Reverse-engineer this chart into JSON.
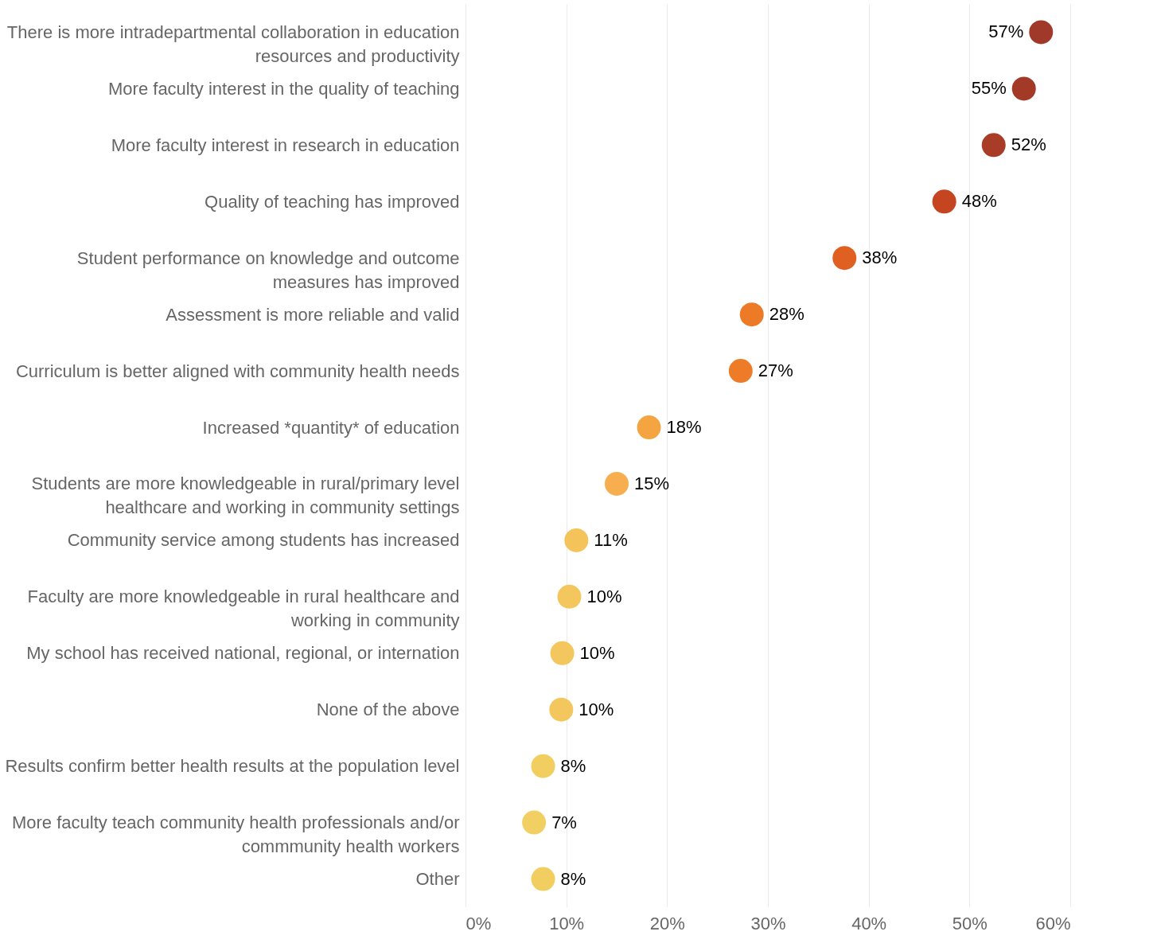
{
  "chart_data": {
    "type": "scatter",
    "orientation": "horizontal",
    "categories": [
      "There is more intradepartmental collaboration in education\nresources and productivity",
      "More faculty interest in the quality of teaching",
      "More faculty interest in research in education",
      "Quality of teaching has improved",
      "Student performance on knowledge and outcome\nmeasures has improved",
      "Assessment is more reliable and valid",
      "Curriculum is better aligned with community health needs",
      "Increased *quantity* of education",
      "Students are more knowledgeable in rural/primary level\nhealthcare and working in community settings",
      "Community service among students has increased",
      "Faculty are more knowledgeable in rural healthcare and\nworking in community",
      "My school has received national, regional, or internation",
      "None of the above",
      "Results confirm better health results at the population level",
      "More faculty teach community health professionals and/or\ncommmunity health workers",
      "Other"
    ],
    "values": [
      57.1,
      55.4,
      52.4,
      47.5,
      37.6,
      28.4,
      27.3,
      18.2,
      15.0,
      11.0,
      10.3,
      9.6,
      9.5,
      7.7,
      6.8,
      7.7
    ],
    "value_labels": [
      "57%",
      "55%",
      "52%",
      "48%",
      "38%",
      "28%",
      "27%",
      "18%",
      "15%",
      "11%",
      "10%",
      "10%",
      "10%",
      "8%",
      "7%",
      "8%"
    ],
    "colors": [
      "#a0392a",
      "#a33a28",
      "#a93c26",
      "#c4451f",
      "#e06022",
      "#ec7a27",
      "#ee7b28",
      "#f5a442",
      "#f6ae4f",
      "#f4c35a",
      "#f3c75d",
      "#f3c75d",
      "#f3c75d",
      "#f2cd60",
      "#f2cf62",
      "#f2cd60"
    ],
    "xlim": [
      0,
      60
    ],
    "xticks": [
      {
        "value": 0,
        "label": "0%"
      },
      {
        "value": 10,
        "label": "10%"
      },
      {
        "value": 20,
        "label": "20%"
      },
      {
        "value": 30,
        "label": "30%"
      },
      {
        "value": 40,
        "label": "40%"
      },
      {
        "value": 50,
        "label": "50%"
      },
      {
        "value": 60,
        "label": "60%"
      }
    ],
    "grid": "x",
    "marker": "circle"
  }
}
